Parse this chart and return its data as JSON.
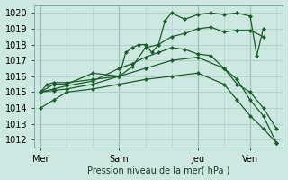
{
  "xlabel": "Pression niveau de la mer( hPa )",
  "bg_color": "#cce8e0",
  "grid_color": "#aacfc8",
  "line_color": "#1a5c2a",
  "ylim": [
    1011.5,
    1020.5
  ],
  "yticks": [
    1012,
    1013,
    1014,
    1015,
    1016,
    1017,
    1018,
    1019,
    1020
  ],
  "xtick_labels": [
    "Mer",
    "Sam",
    "Jeu",
    "Ven"
  ],
  "xtick_positions": [
    0,
    24,
    48,
    64
  ],
  "vline_positions": [
    0,
    24,
    48,
    64
  ],
  "xlim": [
    -2,
    74
  ],
  "series": [
    {
      "x": [
        0,
        2,
        4,
        8,
        16,
        24,
        28,
        32,
        36,
        40,
        44,
        48,
        52,
        56,
        60,
        64,
        68
      ],
      "y": [
        1015.0,
        1015.5,
        1015.6,
        1015.6,
        1015.8,
        1016.0,
        1016.6,
        1017.8,
        1018.0,
        1018.5,
        1018.7,
        1019.0,
        1019.1,
        1018.8,
        1018.9,
        1018.9,
        1018.5
      ],
      "marker": "D",
      "ms": 2.0
    },
    {
      "x": [
        0,
        4,
        8,
        16,
        24,
        26,
        28,
        30,
        32,
        34,
        36,
        38,
        40,
        44,
        48,
        52,
        56,
        60,
        64,
        66,
        68
      ],
      "y": [
        1015.0,
        1015.5,
        1015.5,
        1016.2,
        1016.0,
        1017.5,
        1017.8,
        1018.0,
        1018.0,
        1017.5,
        1018.0,
        1019.5,
        1020.0,
        1019.6,
        1019.9,
        1020.0,
        1019.9,
        1020.0,
        1019.8,
        1017.3,
        1019.0
      ],
      "marker": "D",
      "ms": 2.0
    },
    {
      "x": [
        0,
        4,
        8,
        16,
        24,
        28,
        32,
        36,
        40,
        44,
        48,
        52,
        56,
        60,
        64,
        68,
        72
      ],
      "y": [
        1015.0,
        1015.2,
        1015.4,
        1015.7,
        1016.5,
        1016.8,
        1017.2,
        1017.5,
        1017.8,
        1017.7,
        1017.4,
        1017.3,
        1016.5,
        1015.5,
        1015.0,
        1014.0,
        1012.7
      ],
      "marker": "D",
      "ms": 2.0
    },
    {
      "x": [
        0,
        4,
        8,
        16,
        24,
        32,
        40,
        48,
        56,
        60,
        64,
        68,
        72
      ],
      "y": [
        1015.0,
        1015.1,
        1015.2,
        1015.5,
        1016.0,
        1016.5,
        1017.0,
        1017.2,
        1016.5,
        1015.8,
        1014.5,
        1013.5,
        1011.8
      ],
      "marker": "D",
      "ms": 2.0
    },
    {
      "x": [
        0,
        4,
        8,
        16,
        24,
        32,
        40,
        48,
        56,
        60,
        64,
        68,
        72
      ],
      "y": [
        1014.0,
        1014.5,
        1015.0,
        1015.2,
        1015.5,
        1015.8,
        1016.0,
        1016.2,
        1015.5,
        1014.5,
        1013.5,
        1012.7,
        1011.8
      ],
      "marker": "D",
      "ms": 2.0
    }
  ]
}
